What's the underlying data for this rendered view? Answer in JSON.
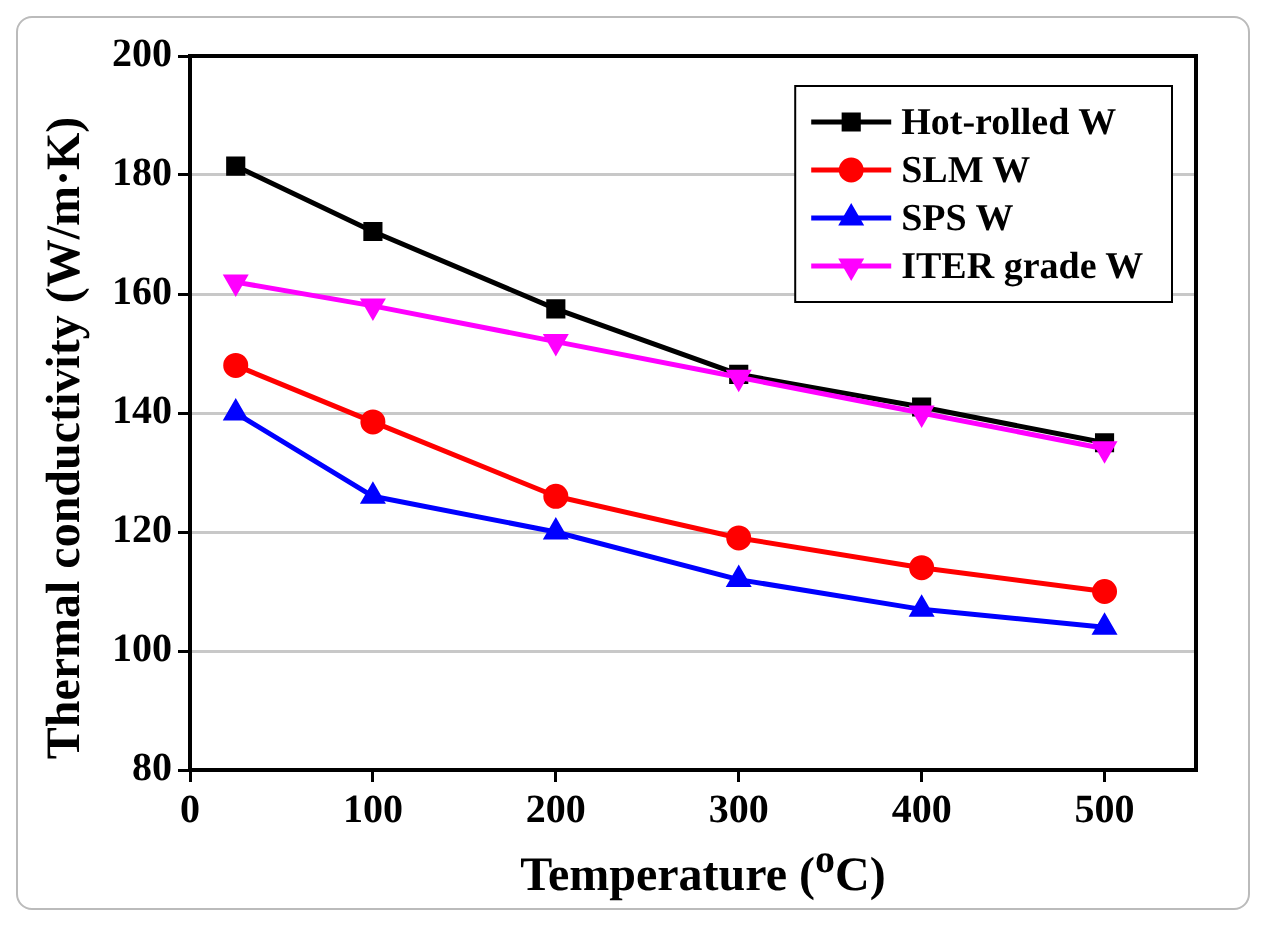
{
  "chart_data": {
    "type": "line",
    "xlabel": "Temperature ($^{o}$C)",
    "ylabel": "Thermal conductivity (W/m·K)",
    "x": [
      25,
      100,
      200,
      300,
      400,
      500
    ],
    "series": [
      {
        "name": "Hot-rolled W",
        "color": "#000000",
        "marker": "square",
        "values": [
          181.5,
          170.5,
          157.5,
          146.5,
          141,
          135
        ]
      },
      {
        "name": "SLM W",
        "color": "#ff0000",
        "marker": "circle",
        "values": [
          148,
          138.5,
          126,
          119,
          114,
          110
        ]
      },
      {
        "name": "SPS W",
        "color": "#0000ff",
        "marker": "triangle",
        "values": [
          140,
          126,
          120,
          112,
          107,
          104
        ]
      },
      {
        "name": "ITER grade W",
        "color": "#ff00ff",
        "marker": "triangle_down",
        "values": [
          162,
          158,
          152,
          146,
          140,
          134
        ]
      }
    ],
    "xlim": [
      0,
      550
    ],
    "xticks": [
      0,
      100,
      200,
      300,
      400,
      500
    ],
    "ylim": [
      80,
      200
    ],
    "yticks": [
      80,
      100,
      120,
      140,
      160,
      180,
      200
    ],
    "grid": "y",
    "legend": "top right",
    "line_style": "solid"
  }
}
